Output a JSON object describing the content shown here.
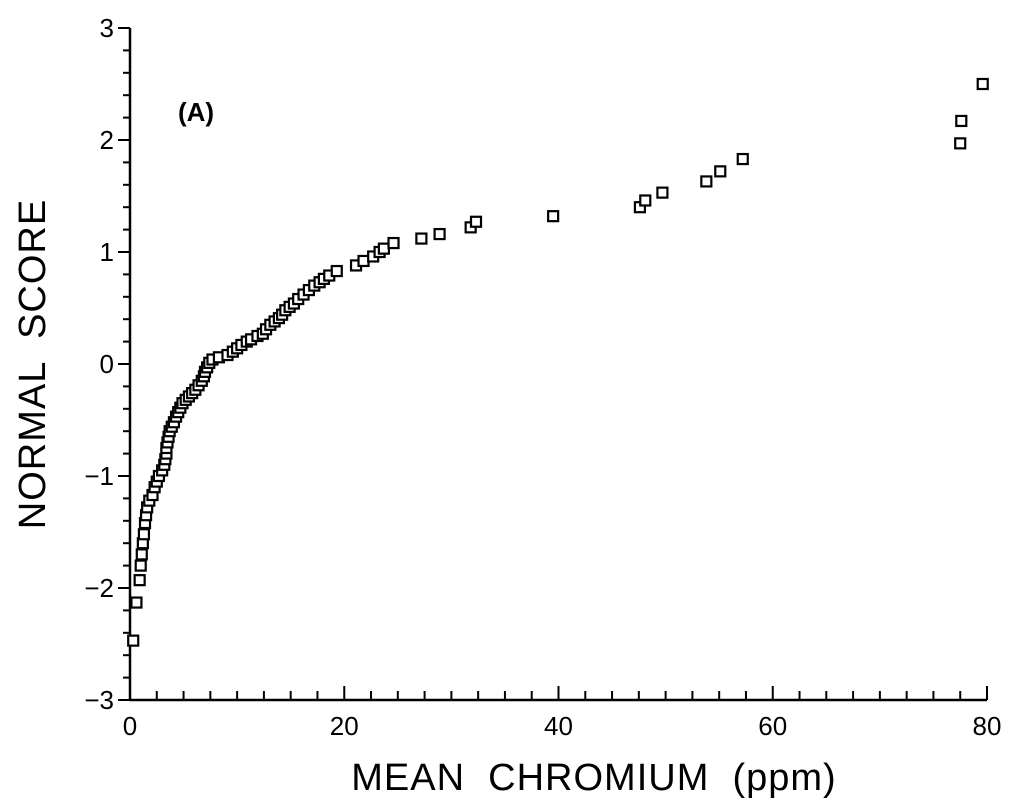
{
  "chart_data": {
    "type": "scatter",
    "panel_label": "(A)",
    "xlabel": "MEAN  CHROMIUM  (ppm)",
    "ylabel": "NORMAL  SCORE",
    "xlim": [
      0,
      80
    ],
    "ylim": [
      -3,
      3
    ],
    "x_tick_labels": [
      "0",
      "20",
      "40",
      "60",
      "80"
    ],
    "x_tick_values": [
      0,
      20,
      40,
      60,
      80
    ],
    "y_tick_labels": [
      "−3",
      "−2",
      "−1",
      "0",
      "1",
      "2",
      "3"
    ],
    "y_tick_values": [
      -3,
      -2,
      -1,
      0,
      1,
      2,
      3
    ],
    "marker": "open-square",
    "points": [
      [
        0.3,
        -2.47
      ],
      [
        0.6,
        -2.13
      ],
      [
        0.9,
        -1.93
      ],
      [
        1.0,
        -1.8
      ],
      [
        1.1,
        -1.7
      ],
      [
        1.2,
        -1.6
      ],
      [
        1.3,
        -1.52
      ],
      [
        1.4,
        -1.42
      ],
      [
        1.5,
        -1.35
      ],
      [
        1.6,
        -1.28
      ],
      [
        1.8,
        -1.22
      ],
      [
        2.1,
        -1.17
      ],
      [
        2.3,
        -1.1
      ],
      [
        2.5,
        -1.05
      ],
      [
        2.7,
        -1.0
      ],
      [
        3.0,
        -0.95
      ],
      [
        3.2,
        -0.9
      ],
      [
        3.3,
        -0.85
      ],
      [
        3.4,
        -0.8
      ],
      [
        3.4,
        -0.75
      ],
      [
        3.5,
        -0.7
      ],
      [
        3.6,
        -0.65
      ],
      [
        3.7,
        -0.6
      ],
      [
        3.9,
        -0.56
      ],
      [
        4.1,
        -0.52
      ],
      [
        4.3,
        -0.47
      ],
      [
        4.5,
        -0.43
      ],
      [
        4.7,
        -0.39
      ],
      [
        4.9,
        -0.35
      ],
      [
        5.2,
        -0.32
      ],
      [
        5.5,
        -0.29
      ],
      [
        5.8,
        -0.26
      ],
      [
        6.1,
        -0.23
      ],
      [
        6.4,
        -0.19
      ],
      [
        6.7,
        -0.15
      ],
      [
        6.9,
        -0.11
      ],
      [
        7.0,
        -0.07
      ],
      [
        7.2,
        -0.03
      ],
      [
        7.4,
        0.01
      ],
      [
        7.7,
        0.04
      ],
      [
        8.3,
        0.06
      ],
      [
        9.1,
        0.08
      ],
      [
        9.6,
        0.11
      ],
      [
        10.0,
        0.14
      ],
      [
        10.4,
        0.17
      ],
      [
        10.9,
        0.2
      ],
      [
        11.3,
        0.22
      ],
      [
        11.9,
        0.25
      ],
      [
        12.4,
        0.27
      ],
      [
        12.7,
        0.31
      ],
      [
        13.1,
        0.35
      ],
      [
        13.5,
        0.38
      ],
      [
        13.9,
        0.41
      ],
      [
        14.2,
        0.44
      ],
      [
        14.5,
        0.48
      ],
      [
        14.9,
        0.51
      ],
      [
        15.3,
        0.54
      ],
      [
        15.7,
        0.58
      ],
      [
        16.2,
        0.62
      ],
      [
        16.7,
        0.66
      ],
      [
        17.2,
        0.7
      ],
      [
        17.7,
        0.73
      ],
      [
        18.1,
        0.76
      ],
      [
        18.6,
        0.79
      ],
      [
        19.3,
        0.83
      ],
      [
        21.1,
        0.88
      ],
      [
        21.8,
        0.92
      ],
      [
        22.7,
        0.96
      ],
      [
        23.3,
        1.0
      ],
      [
        23.7,
        1.03
      ],
      [
        24.6,
        1.08
      ],
      [
        27.2,
        1.12
      ],
      [
        28.9,
        1.16
      ],
      [
        31.8,
        1.22
      ],
      [
        32.3,
        1.27
      ],
      [
        39.5,
        1.32
      ],
      [
        47.6,
        1.4
      ],
      [
        48.1,
        1.46
      ],
      [
        49.7,
        1.53
      ],
      [
        53.8,
        1.63
      ],
      [
        55.1,
        1.72
      ],
      [
        57.2,
        1.83
      ],
      [
        77.5,
        1.97
      ],
      [
        77.6,
        2.17
      ],
      [
        79.6,
        2.5
      ]
    ]
  }
}
